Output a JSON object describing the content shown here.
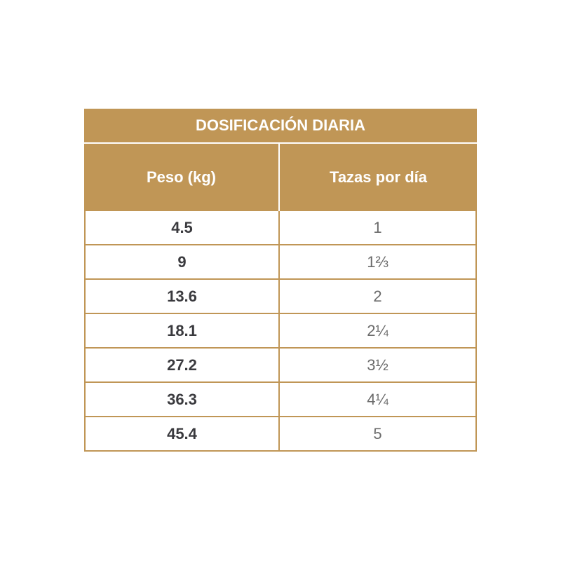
{
  "title": "DOSIFICACIÓN DIARIA",
  "headers": [
    "Peso (kg)",
    "Tazas por día"
  ],
  "rows": [
    [
      "4.5",
      "1"
    ],
    [
      "9",
      "1⅔"
    ],
    [
      "13.6",
      "2"
    ],
    [
      "18.1",
      "2¼"
    ],
    [
      "27.2",
      "3½"
    ],
    [
      "36.3",
      "4¼"
    ],
    [
      "45.4",
      "5"
    ]
  ],
  "colors": {
    "accent": "#c09656",
    "text_bold": "#3a3a3e",
    "text_light": "#6b6b6b"
  }
}
